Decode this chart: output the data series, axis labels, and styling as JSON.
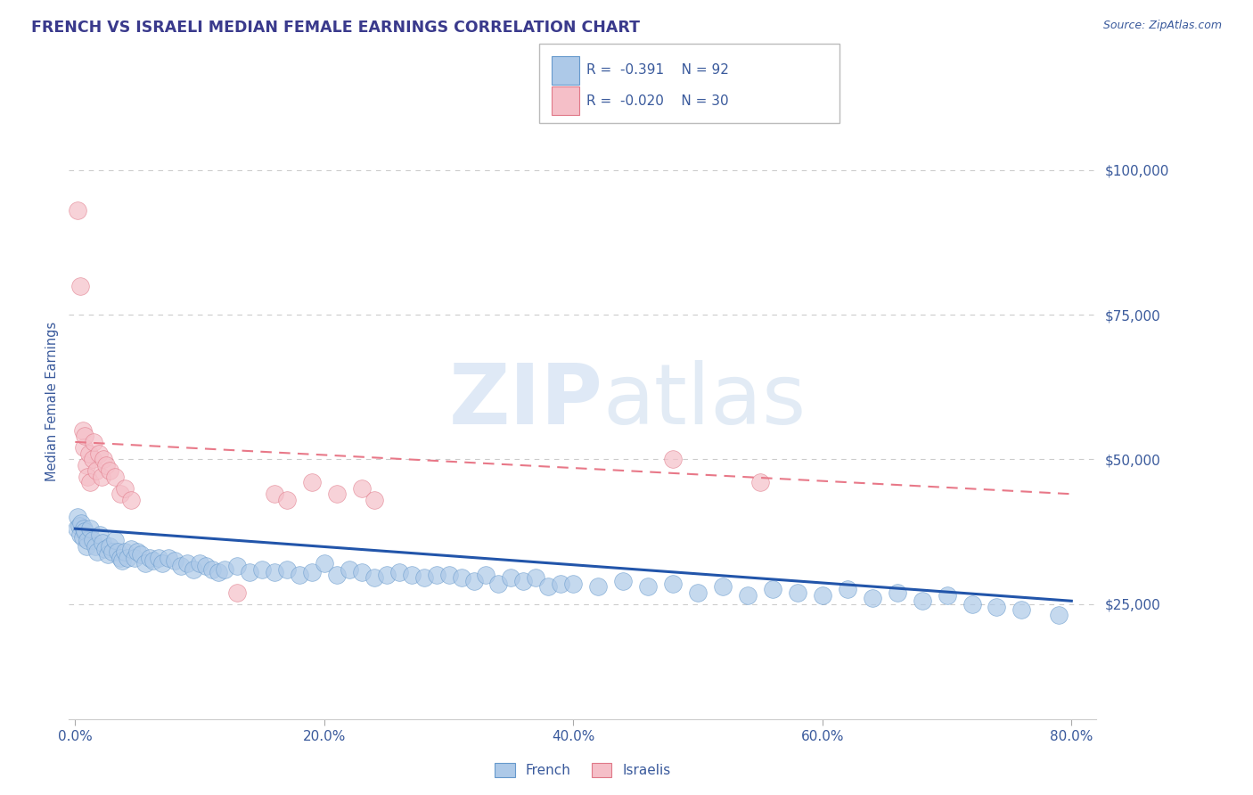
{
  "title": "FRENCH VS ISRAELI MEDIAN FEMALE EARNINGS CORRELATION CHART",
  "source_text": "Source: ZipAtlas.com",
  "ylabel": "Median Female Earnings",
  "watermark_zip": "ZIP",
  "watermark_atlas": "atlas",
  "background_color": "#ffffff",
  "title_color": "#3a3a8c",
  "tick_label_color": "#3a5a9c",
  "grid_color": "#cccccc",
  "french_face_color": "#adc9e8",
  "french_edge_color": "#6699cc",
  "israeli_face_color": "#f5bfc8",
  "israeli_edge_color": "#e07888",
  "french_line_color": "#2255aa",
  "israeli_line_color": "#e87888",
  "ytick_labels": [
    "$25,000",
    "$50,000",
    "$75,000",
    "$100,000"
  ],
  "ytick_values": [
    25000,
    50000,
    75000,
    100000
  ],
  "xlim": [
    -0.005,
    0.82
  ],
  "ylim": [
    5000,
    115000
  ],
  "xtick_labels": [
    "0.0%",
    "20.0%",
    "40.0%",
    "60.0%",
    "80.0%"
  ],
  "xtick_values": [
    0.0,
    0.2,
    0.4,
    0.6,
    0.8
  ],
  "french_x": [
    0.001,
    0.002,
    0.003,
    0.004,
    0.005,
    0.006,
    0.007,
    0.008,
    0.009,
    0.01,
    0.012,
    0.014,
    0.016,
    0.018,
    0.02,
    0.022,
    0.024,
    0.026,
    0.028,
    0.03,
    0.032,
    0.034,
    0.036,
    0.038,
    0.04,
    0.042,
    0.045,
    0.048,
    0.05,
    0.053,
    0.056,
    0.06,
    0.063,
    0.067,
    0.07,
    0.075,
    0.08,
    0.085,
    0.09,
    0.095,
    0.1,
    0.105,
    0.11,
    0.115,
    0.12,
    0.13,
    0.14,
    0.15,
    0.16,
    0.17,
    0.18,
    0.19,
    0.2,
    0.21,
    0.22,
    0.23,
    0.24,
    0.25,
    0.26,
    0.27,
    0.28,
    0.29,
    0.3,
    0.31,
    0.32,
    0.33,
    0.34,
    0.35,
    0.36,
    0.37,
    0.38,
    0.39,
    0.4,
    0.42,
    0.44,
    0.46,
    0.48,
    0.5,
    0.52,
    0.54,
    0.56,
    0.58,
    0.6,
    0.62,
    0.64,
    0.66,
    0.68,
    0.7,
    0.72,
    0.74,
    0.76,
    0.79
  ],
  "french_y": [
    38000,
    40000,
    38500,
    37000,
    39000,
    36500,
    38000,
    37500,
    35000,
    36000,
    38000,
    36000,
    35000,
    34000,
    37000,
    35500,
    34500,
    33500,
    35000,
    34000,
    36000,
    34000,
    33000,
    32500,
    34000,
    33000,
    34500,
    33000,
    34000,
    33500,
    32000,
    33000,
    32500,
    33000,
    32000,
    33000,
    32500,
    31500,
    32000,
    31000,
    32000,
    31500,
    31000,
    30500,
    31000,
    31500,
    30500,
    31000,
    30500,
    31000,
    30000,
    30500,
    32000,
    30000,
    31000,
    30500,
    29500,
    30000,
    30500,
    30000,
    29500,
    30000,
    30000,
    29500,
    29000,
    30000,
    28500,
    29500,
    29000,
    29500,
    28000,
    28500,
    28500,
    28000,
    29000,
    28000,
    28500,
    27000,
    28000,
    26500,
    27500,
    27000,
    26500,
    27500,
    26000,
    27000,
    25500,
    26500,
    25000,
    24500,
    24000,
    23000
  ],
  "israeli_x": [
    0.002,
    0.004,
    0.006,
    0.007,
    0.008,
    0.009,
    0.01,
    0.011,
    0.012,
    0.014,
    0.015,
    0.017,
    0.019,
    0.021,
    0.023,
    0.025,
    0.028,
    0.032,
    0.036,
    0.04,
    0.045,
    0.13,
    0.16,
    0.23,
    0.17,
    0.19,
    0.21,
    0.24,
    0.48,
    0.55
  ],
  "israeli_y": [
    93000,
    80000,
    55000,
    52000,
    54000,
    49000,
    47000,
    51000,
    46000,
    50000,
    53000,
    48000,
    51000,
    47000,
    50000,
    49000,
    48000,
    47000,
    44000,
    45000,
    43000,
    27000,
    44000,
    45000,
    43000,
    46000,
    44000,
    43000,
    50000,
    46000
  ],
  "french_trend_x": [
    0.0,
    0.8
  ],
  "french_trend_y": [
    38000,
    25500
  ],
  "israeli_trend_x": [
    0.0,
    0.8
  ],
  "israeli_trend_y": [
    53000,
    44000
  ]
}
